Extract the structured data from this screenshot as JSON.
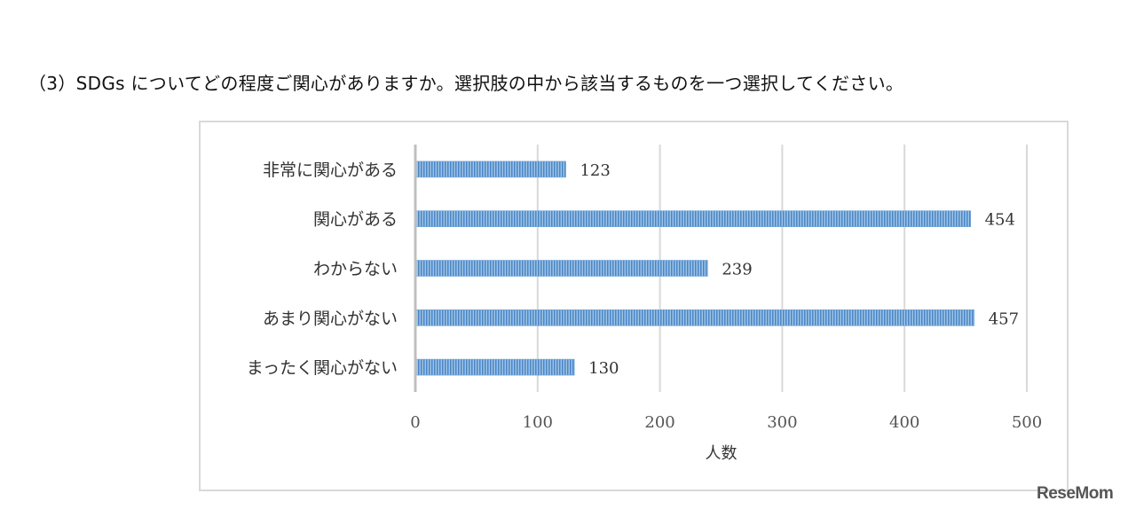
{
  "question": "（3）SDGs についてどの程度ご関心がありますか。選択肢の中から該当するものを一つ選択してください。",
  "logo": "ReseMom",
  "chart_data": {
    "type": "bar",
    "orientation": "horizontal",
    "categories": [
      "非常に関心がある",
      "関心がある",
      "わからない",
      "あまり関心がない",
      "まったく関心がない"
    ],
    "values": [
      123,
      454,
      239,
      457,
      130
    ],
    "xlabel": "人数",
    "ylabel": "",
    "xlim": [
      0,
      500
    ],
    "xticks": [
      "0",
      "100",
      "200",
      "300",
      "400",
      "500"
    ],
    "grid": true,
    "bar_color": "#5b9bd5"
  }
}
